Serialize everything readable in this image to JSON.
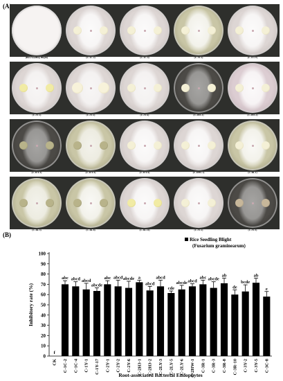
{
  "panel_a_label": "(A)",
  "panel_b_label": "(B)",
  "plates": [
    {
      "caption": "(Rice Seedling Blight)",
      "colony": "none",
      "fungal": "full",
      "tone": "light"
    },
    {
      "caption": "(C-1C-2)",
      "colony": "cream",
      "fungal": "strong",
      "tone": "light"
    },
    {
      "caption": "(C-1C-4)",
      "colony": "cream",
      "fungal": "strong",
      "tone": "light"
    },
    {
      "caption": "(C-1Y-1)",
      "colony": "cream",
      "fungal": "strong",
      "tone": "olive"
    },
    {
      "caption": "(C-1Y-17)",
      "colony": "cream",
      "fungal": "strong",
      "tone": "light"
    },
    {
      "caption": "(C-2Y-1)",
      "colony": "yellow",
      "fungal": "medium",
      "tone": "light"
    },
    {
      "caption": "(C-2Y-2)",
      "colony": "spread",
      "fungal": "medium",
      "tone": "light"
    },
    {
      "caption": "(C-2Y-6)",
      "colony": "cream",
      "fungal": "medium",
      "tone": "light"
    },
    {
      "caption": "(C-2H3-1)",
      "colony": "cream",
      "fungal": "faint",
      "tone": "dark"
    },
    {
      "caption": "(C-2H3-2)",
      "colony": "cream",
      "fungal": "strong",
      "tone": "pinkish"
    },
    {
      "caption": "(C-2LY-3)",
      "colony": "olive",
      "fungal": "faint",
      "tone": "dark"
    },
    {
      "caption": "(C-2LY-5)",
      "colony": "olive",
      "fungal": "medium",
      "tone": "olive"
    },
    {
      "caption": "(C-2LY-6)",
      "colony": "cream",
      "fungal": "strong",
      "tone": "light"
    },
    {
      "caption": "(C-2HW-1)",
      "colony": "cream",
      "fungal": "strong",
      "tone": "light"
    },
    {
      "caption": "(C-3R-1)",
      "colony": "cream",
      "fungal": "strong",
      "tone": "olive"
    },
    {
      "caption": "(C-3R-3)",
      "colony": "olive",
      "fungal": "medium",
      "tone": "olive"
    },
    {
      "caption": "(C-3R-8)",
      "colony": "olive",
      "fungal": "strong",
      "tone": "olive"
    },
    {
      "caption": "(C-3R-10)",
      "colony": "yellow",
      "fungal": "strong",
      "tone": "light"
    },
    {
      "caption": "(C-3Y-2)",
      "colony": "cream",
      "fungal": "strong",
      "tone": "light"
    },
    {
      "caption": "(C-3Y-5)",
      "colony": "tan",
      "fungal": "faint",
      "tone": "dark"
    }
  ],
  "chart_data": {
    "type": "bar",
    "title": "",
    "legend": {
      "entries": [
        "Rice Seedling Blight",
        "(Fusarium graminearum)"
      ],
      "placement": "top-right"
    },
    "xlabel": "Root-associated Bacterial Endophytes",
    "ylabel": "Inhibitory rate (%)",
    "ylim": [
      0,
      100
    ],
    "yticks": [
      0,
      10,
      20,
      30,
      40,
      50,
      60,
      70,
      80,
      90,
      100
    ],
    "categories": [
      "CK",
      "C-1C-2",
      "C-1C-4",
      "C-1Y-1",
      "C-1Y-17",
      "C-2Y-1",
      "C-2Y-2",
      "C-2Y-6",
      "C-2H3-1",
      "C-2H3-2",
      "C-2LY-3",
      "C-2LY-5",
      "C-2LY-6",
      "C-2HW-1",
      "C-3R-1",
      "C-3R-3",
      "C-3R-8",
      "C-3R-10",
      "C-3Y-2",
      "C-3Y-5",
      "C-3C-8"
    ],
    "values": [
      0,
      70,
      68,
      65,
      63.5,
      70,
      68,
      66.5,
      72,
      64,
      68,
      61.5,
      65,
      68,
      70,
      66.5,
      71,
      60,
      63,
      71.5,
      58
    ],
    "errors": [
      0,
      3.5,
      4.5,
      6,
      3,
      3.5,
      6,
      6.5,
      2,
      4,
      6,
      2,
      4,
      2.5,
      4,
      6,
      5,
      4.5,
      6.5,
      4.5,
      5
    ],
    "letters": [
      "f",
      "abc",
      "abcd",
      "abcd",
      "abcde",
      "abc",
      "abcd",
      "abcde",
      "a",
      "abcd",
      "abcd",
      "cde",
      "abcde",
      "abcd",
      "abc",
      "abcde",
      "ab",
      "de",
      "bcde",
      "ab",
      "e"
    ],
    "colors": {
      "bar": "#000000",
      "axis": "#000000"
    }
  }
}
